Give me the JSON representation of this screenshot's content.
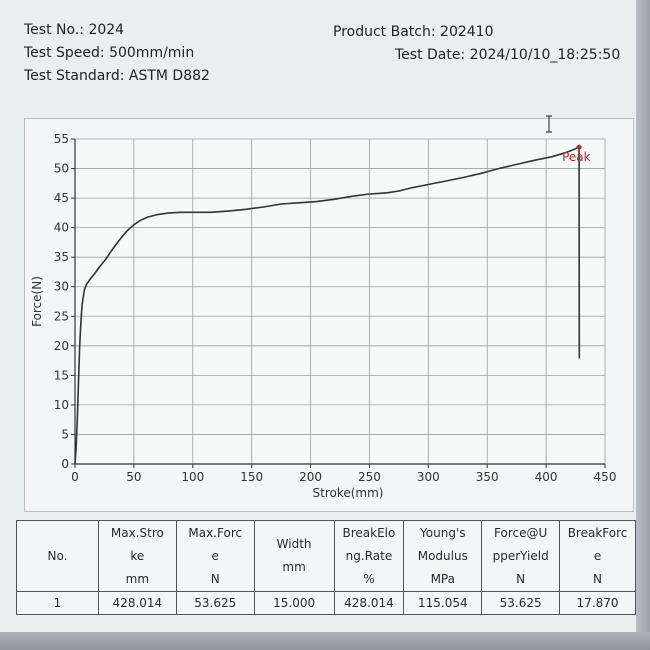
{
  "header": {
    "test_no_label": "Test No.:",
    "test_no_value": "2024",
    "test_speed_label": "Test Speed:",
    "test_speed_value": "500mm/min",
    "test_standard_label": "Test Standard:",
    "test_standard_value": "ASTM D882",
    "product_batch_label": "Product Batch:",
    "product_batch_value": "202410",
    "test_date_label": "Test Date:",
    "test_date_value": "2024/10/10_18:25:50"
  },
  "chart_data": {
    "type": "line",
    "title": "",
    "xlabel": "Stroke(mm)",
    "ylabel": "Force(N)",
    "xlim": [
      0,
      450
    ],
    "ylim": [
      0,
      55
    ],
    "x_ticks": [
      0,
      50,
      100,
      150,
      200,
      250,
      300,
      350,
      400,
      450
    ],
    "y_ticks": [
      0,
      5,
      10,
      15,
      20,
      25,
      30,
      35,
      40,
      45,
      50,
      55
    ],
    "grid": true,
    "legend": "none",
    "color": "#333333",
    "peak_label": "Peak",
    "peak_color": "#b03030",
    "peak": {
      "x": 428.014,
      "y": 53.625
    },
    "series": [
      {
        "x": [
          0,
          1,
          2,
          3,
          4,
          5,
          6,
          8,
          10,
          13,
          17,
          21,
          26,
          32,
          38,
          44,
          50,
          56,
          62,
          70,
          80,
          90,
          100,
          115,
          130,
          145,
          160,
          175,
          190,
          205,
          220,
          235,
          250,
          265,
          275,
          285,
          300,
          315,
          330,
          345,
          360,
          375,
          390,
          405,
          415,
          422,
          428.014,
          428.1,
          428.2
        ],
        "y": [
          0,
          3,
          8,
          14,
          20,
          24,
          27,
          29.5,
          30.5,
          31.3,
          32.3,
          33.4,
          34.6,
          36.4,
          38.0,
          39.4,
          40.5,
          41.3,
          41.8,
          42.2,
          42.5,
          42.6,
          42.6,
          42.6,
          42.8,
          43.1,
          43.5,
          44.0,
          44.2,
          44.4,
          44.8,
          45.3,
          45.7,
          45.9,
          46.2,
          46.7,
          47.3,
          47.9,
          48.5,
          49.2,
          50.0,
          50.7,
          51.4,
          52.0,
          52.6,
          53.1,
          53.625,
          35.0,
          17.87
        ]
      }
    ]
  },
  "table": {
    "headers": [
      [
        "No."
      ],
      [
        "Max.Stro",
        "ke",
        "mm"
      ],
      [
        "Max.Forc",
        "e",
        "N"
      ],
      [
        "Width",
        "mm"
      ],
      [
        "BreakElo",
        "ng.Rate",
        "%"
      ],
      [
        "Young's",
        "Modulus",
        "MPa"
      ],
      [
        "Force@U",
        "pperYield",
        "N"
      ],
      [
        "BreakForc",
        "e",
        "N"
      ]
    ],
    "rows": [
      [
        "1",
        "428.014",
        "53.625",
        "15.000",
        "428.014",
        "115.054",
        "53.625",
        "17.870"
      ]
    ]
  }
}
